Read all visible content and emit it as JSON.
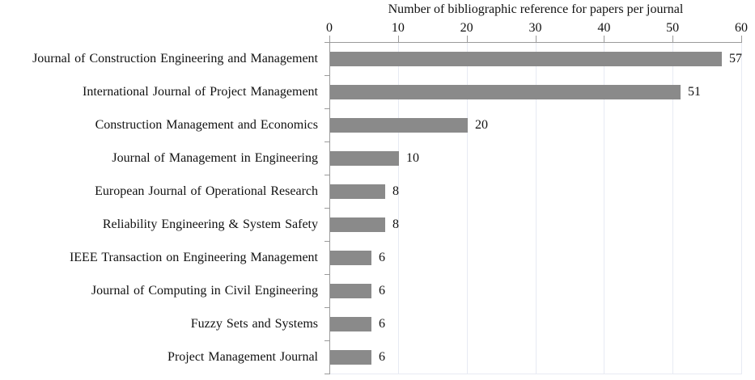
{
  "chart_data": {
    "type": "bar",
    "orientation": "horizontal",
    "title": "Number of bibliographic reference for papers per journal",
    "categories": [
      "Journal of Construction Engineering and Management",
      "International Journal of Project Management",
      "Construction Management and Economics",
      "Journal of Management in Engineering",
      "European Journal of Operational Research",
      "Reliability Engineering & System Safety",
      "IEEE Transaction on Engineering Management",
      "Journal of Computing in Civil Engineering",
      "Fuzzy Sets and Systems",
      "Project Management Journal"
    ],
    "values": [
      57,
      51,
      20,
      10,
      8,
      8,
      6,
      6,
      6,
      6
    ],
    "value_labels": [
      "57",
      "51",
      "20",
      "10",
      "8",
      "8",
      "6",
      "6",
      "6",
      "6"
    ],
    "xlabel": "",
    "ylabel": "",
    "xlim": [
      0,
      60
    ],
    "xticks": [
      0,
      10,
      20,
      30,
      40,
      50,
      60
    ],
    "xtick_labels": [
      "0",
      "10",
      "20",
      "30",
      "40",
      "50",
      "60"
    ],
    "grid": true,
    "legend": false,
    "colors": {
      "bar": "#8a8a8a",
      "axis": "#9b9b9b",
      "gridline": "#e7eaf3",
      "text": "#111111",
      "background": "#ffffff"
    }
  }
}
